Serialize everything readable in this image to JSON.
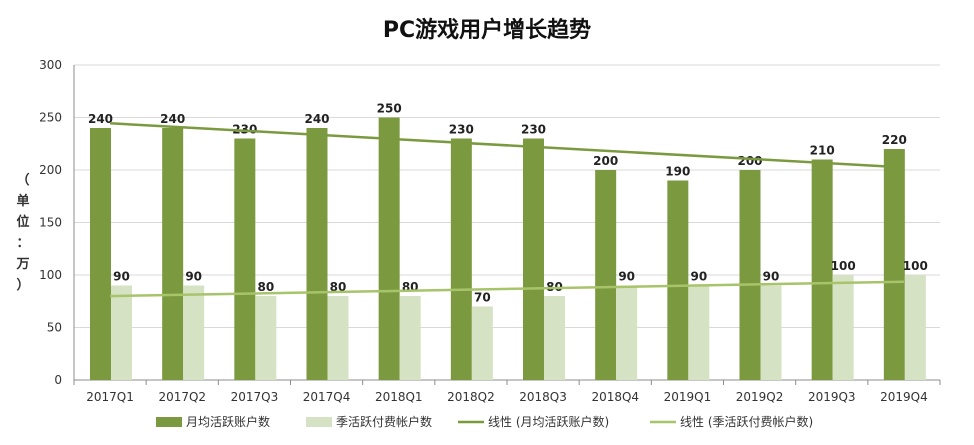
{
  "chart_data": {
    "type": "bar",
    "title": "PC游戏用户增长趋势",
    "ylabel": "（单位：万）",
    "ylim": [
      0,
      300
    ],
    "yticks": [
      0,
      50,
      100,
      150,
      200,
      250,
      300
    ],
    "categories": [
      "2017Q1",
      "2017Q2",
      "2017Q3",
      "2017Q4",
      "2018Q1",
      "2018Q2",
      "2018Q3",
      "2018Q4",
      "2019Q1",
      "2019Q2",
      "2019Q3",
      "2019Q4"
    ],
    "series": [
      {
        "name": "月均活跃账户数",
        "values": [
          240,
          240,
          230,
          240,
          250,
          230,
          230,
          200,
          190,
          200,
          210,
          220
        ]
      },
      {
        "name": "季活跃付费帐户数",
        "values": [
          90,
          90,
          80,
          80,
          80,
          70,
          80,
          90,
          90,
          90,
          100,
          100
        ]
      }
    ],
    "trendlines": [
      {
        "name": "线性 (月均活跃账户数)",
        "of_series": 0,
        "start": 244.5,
        "end": 202.5
      },
      {
        "name": "线性 (季活跃付费帐户数)",
        "of_series": 1,
        "start": 79.9,
        "end": 93.6
      }
    ],
    "grid": true,
    "legend_position": "bottom",
    "colors": {
      "series0": "#7b9a3f",
      "series1": "#d6e2c4",
      "trend0": "#7b9a3f",
      "trend1": "#a8c46a",
      "grid": "#d9d9d9",
      "axis": "#8c8c8c",
      "text": "#333333"
    }
  }
}
